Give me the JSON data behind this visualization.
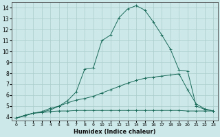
{
  "xlabel": "Humidex (Indice chaleur)",
  "xlim": [
    -0.5,
    23.5
  ],
  "ylim": [
    3.7,
    14.5
  ],
  "yticks": [
    4,
    5,
    6,
    7,
    8,
    9,
    10,
    11,
    12,
    13,
    14
  ],
  "xticks": [
    0,
    1,
    2,
    3,
    4,
    5,
    6,
    7,
    8,
    9,
    10,
    11,
    12,
    13,
    14,
    15,
    16,
    17,
    18,
    19,
    20,
    21,
    22,
    23
  ],
  "bg_color": "#cce8e8",
  "grid_color": "#aacccc",
  "line_color": "#1a6b5a",
  "lines": [
    {
      "x": [
        0,
        1,
        2,
        3,
        4,
        5,
        6,
        7,
        8,
        9,
        10,
        11,
        12,
        13,
        14,
        15,
        16,
        17,
        18,
        19,
        20,
        21,
        22,
        23
      ],
      "y": [
        3.9,
        4.15,
        4.35,
        4.4,
        4.5,
        4.55,
        4.55,
        4.6,
        4.6,
        4.6,
        4.6,
        4.6,
        4.6,
        4.6,
        4.6,
        4.6,
        4.6,
        4.6,
        4.6,
        4.6,
        4.55,
        4.55,
        4.55,
        4.55
      ],
      "style": "-",
      "marker": "+"
    },
    {
      "x": [
        0,
        1,
        2,
        3,
        4,
        5,
        6,
        7,
        8,
        9,
        10,
        11,
        12,
        13,
        14,
        15,
        16,
        17,
        18,
        19,
        20,
        21,
        22,
        23
      ],
      "y": [
        3.9,
        4.15,
        4.35,
        4.5,
        4.8,
        5.0,
        5.3,
        5.55,
        5.7,
        5.9,
        6.2,
        6.5,
        6.8,
        7.1,
        7.35,
        7.55,
        7.65,
        7.75,
        7.85,
        7.95,
        6.5,
        5.2,
        4.75,
        4.55
      ],
      "style": "-",
      "marker": "+"
    },
    {
      "x": [
        0,
        1,
        2,
        3,
        4,
        5,
        6,
        7,
        8,
        9,
        10,
        11,
        12,
        13,
        14,
        15,
        16,
        17,
        18,
        19,
        20,
        21,
        22,
        23
      ],
      "y": [
        3.9,
        4.1,
        4.35,
        4.45,
        4.65,
        5.0,
        5.5,
        6.3,
        8.4,
        8.5,
        11.0,
        11.5,
        13.1,
        13.9,
        14.2,
        13.8,
        12.7,
        11.5,
        10.2,
        8.3,
        8.2,
        5.0,
        4.7,
        4.55
      ],
      "style": "-",
      "marker": "+"
    }
  ]
}
